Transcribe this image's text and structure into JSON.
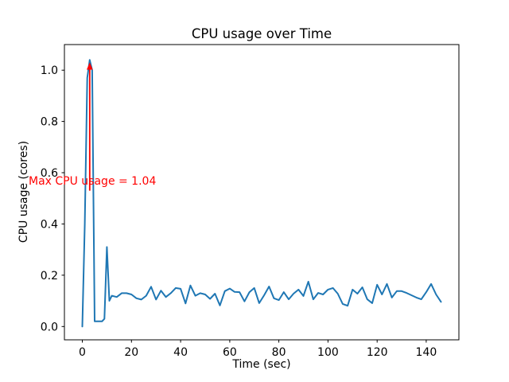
{
  "chart_data": {
    "type": "line",
    "title": "CPU usage over Time",
    "xlabel": "Time (sec)",
    "ylabel": "CPU usage (cores)",
    "grid": false,
    "legend": null,
    "xlim": [
      -7.3,
      153.3
    ],
    "ylim": [
      -0.052,
      1.1
    ],
    "xticks": [
      0,
      20,
      40,
      60,
      80,
      100,
      120,
      140
    ],
    "yticks": [
      "0.0",
      "0.2",
      "0.4",
      "0.6",
      "0.8",
      "1.0"
    ],
    "series": [
      {
        "name": "cpu-usage",
        "color": "#1f77b4",
        "x": [
          0,
          1,
          2,
          3,
          4,
          5,
          6,
          7,
          8,
          9,
          10,
          11,
          12,
          14,
          16,
          18,
          20,
          22,
          24,
          26,
          28,
          30,
          32,
          34,
          36,
          38,
          40,
          42,
          44,
          46,
          48,
          50,
          52,
          54,
          56,
          58,
          60,
          62,
          64,
          66,
          68,
          70,
          72,
          74,
          76,
          78,
          80,
          82,
          84,
          86,
          88,
          90,
          92,
          94,
          96,
          98,
          100,
          102,
          104,
          106,
          108,
          110,
          112,
          114,
          116,
          118,
          120,
          122,
          124,
          126,
          128,
          130,
          132,
          134,
          136,
          138,
          140,
          142,
          144,
          146
        ],
        "y": [
          0.0,
          0.4,
          0.97,
          1.04,
          1.0,
          0.02,
          0.02,
          0.02,
          0.02,
          0.03,
          0.31,
          0.1,
          0.12,
          0.115,
          0.13,
          0.13,
          0.125,
          0.11,
          0.105,
          0.12,
          0.155,
          0.105,
          0.14,
          0.115,
          0.13,
          0.15,
          0.147,
          0.09,
          0.16,
          0.12,
          0.13,
          0.125,
          0.108,
          0.128,
          0.082,
          0.138,
          0.148,
          0.135,
          0.134,
          0.098,
          0.134,
          0.15,
          0.091,
          0.122,
          0.156,
          0.11,
          0.103,
          0.134,
          0.106,
          0.128,
          0.144,
          0.119,
          0.175,
          0.106,
          0.131,
          0.125,
          0.144,
          0.15,
          0.128,
          0.088,
          0.081,
          0.144,
          0.128,
          0.153,
          0.106,
          0.091,
          0.163,
          0.125,
          0.166,
          0.113,
          0.138,
          0.138,
          0.131,
          0.122,
          0.113,
          0.106,
          0.134,
          0.166,
          0.125,
          0.096
        ]
      }
    ],
    "annotation": {
      "text": "Max CPU usage = 1.04",
      "color": "#ff0000",
      "max_value": 1.04,
      "text_pos": [
        -22,
        0.562
      ],
      "arrow": {
        "x": 3,
        "y_from": 0.53,
        "y_to": 1.03
      }
    }
  }
}
